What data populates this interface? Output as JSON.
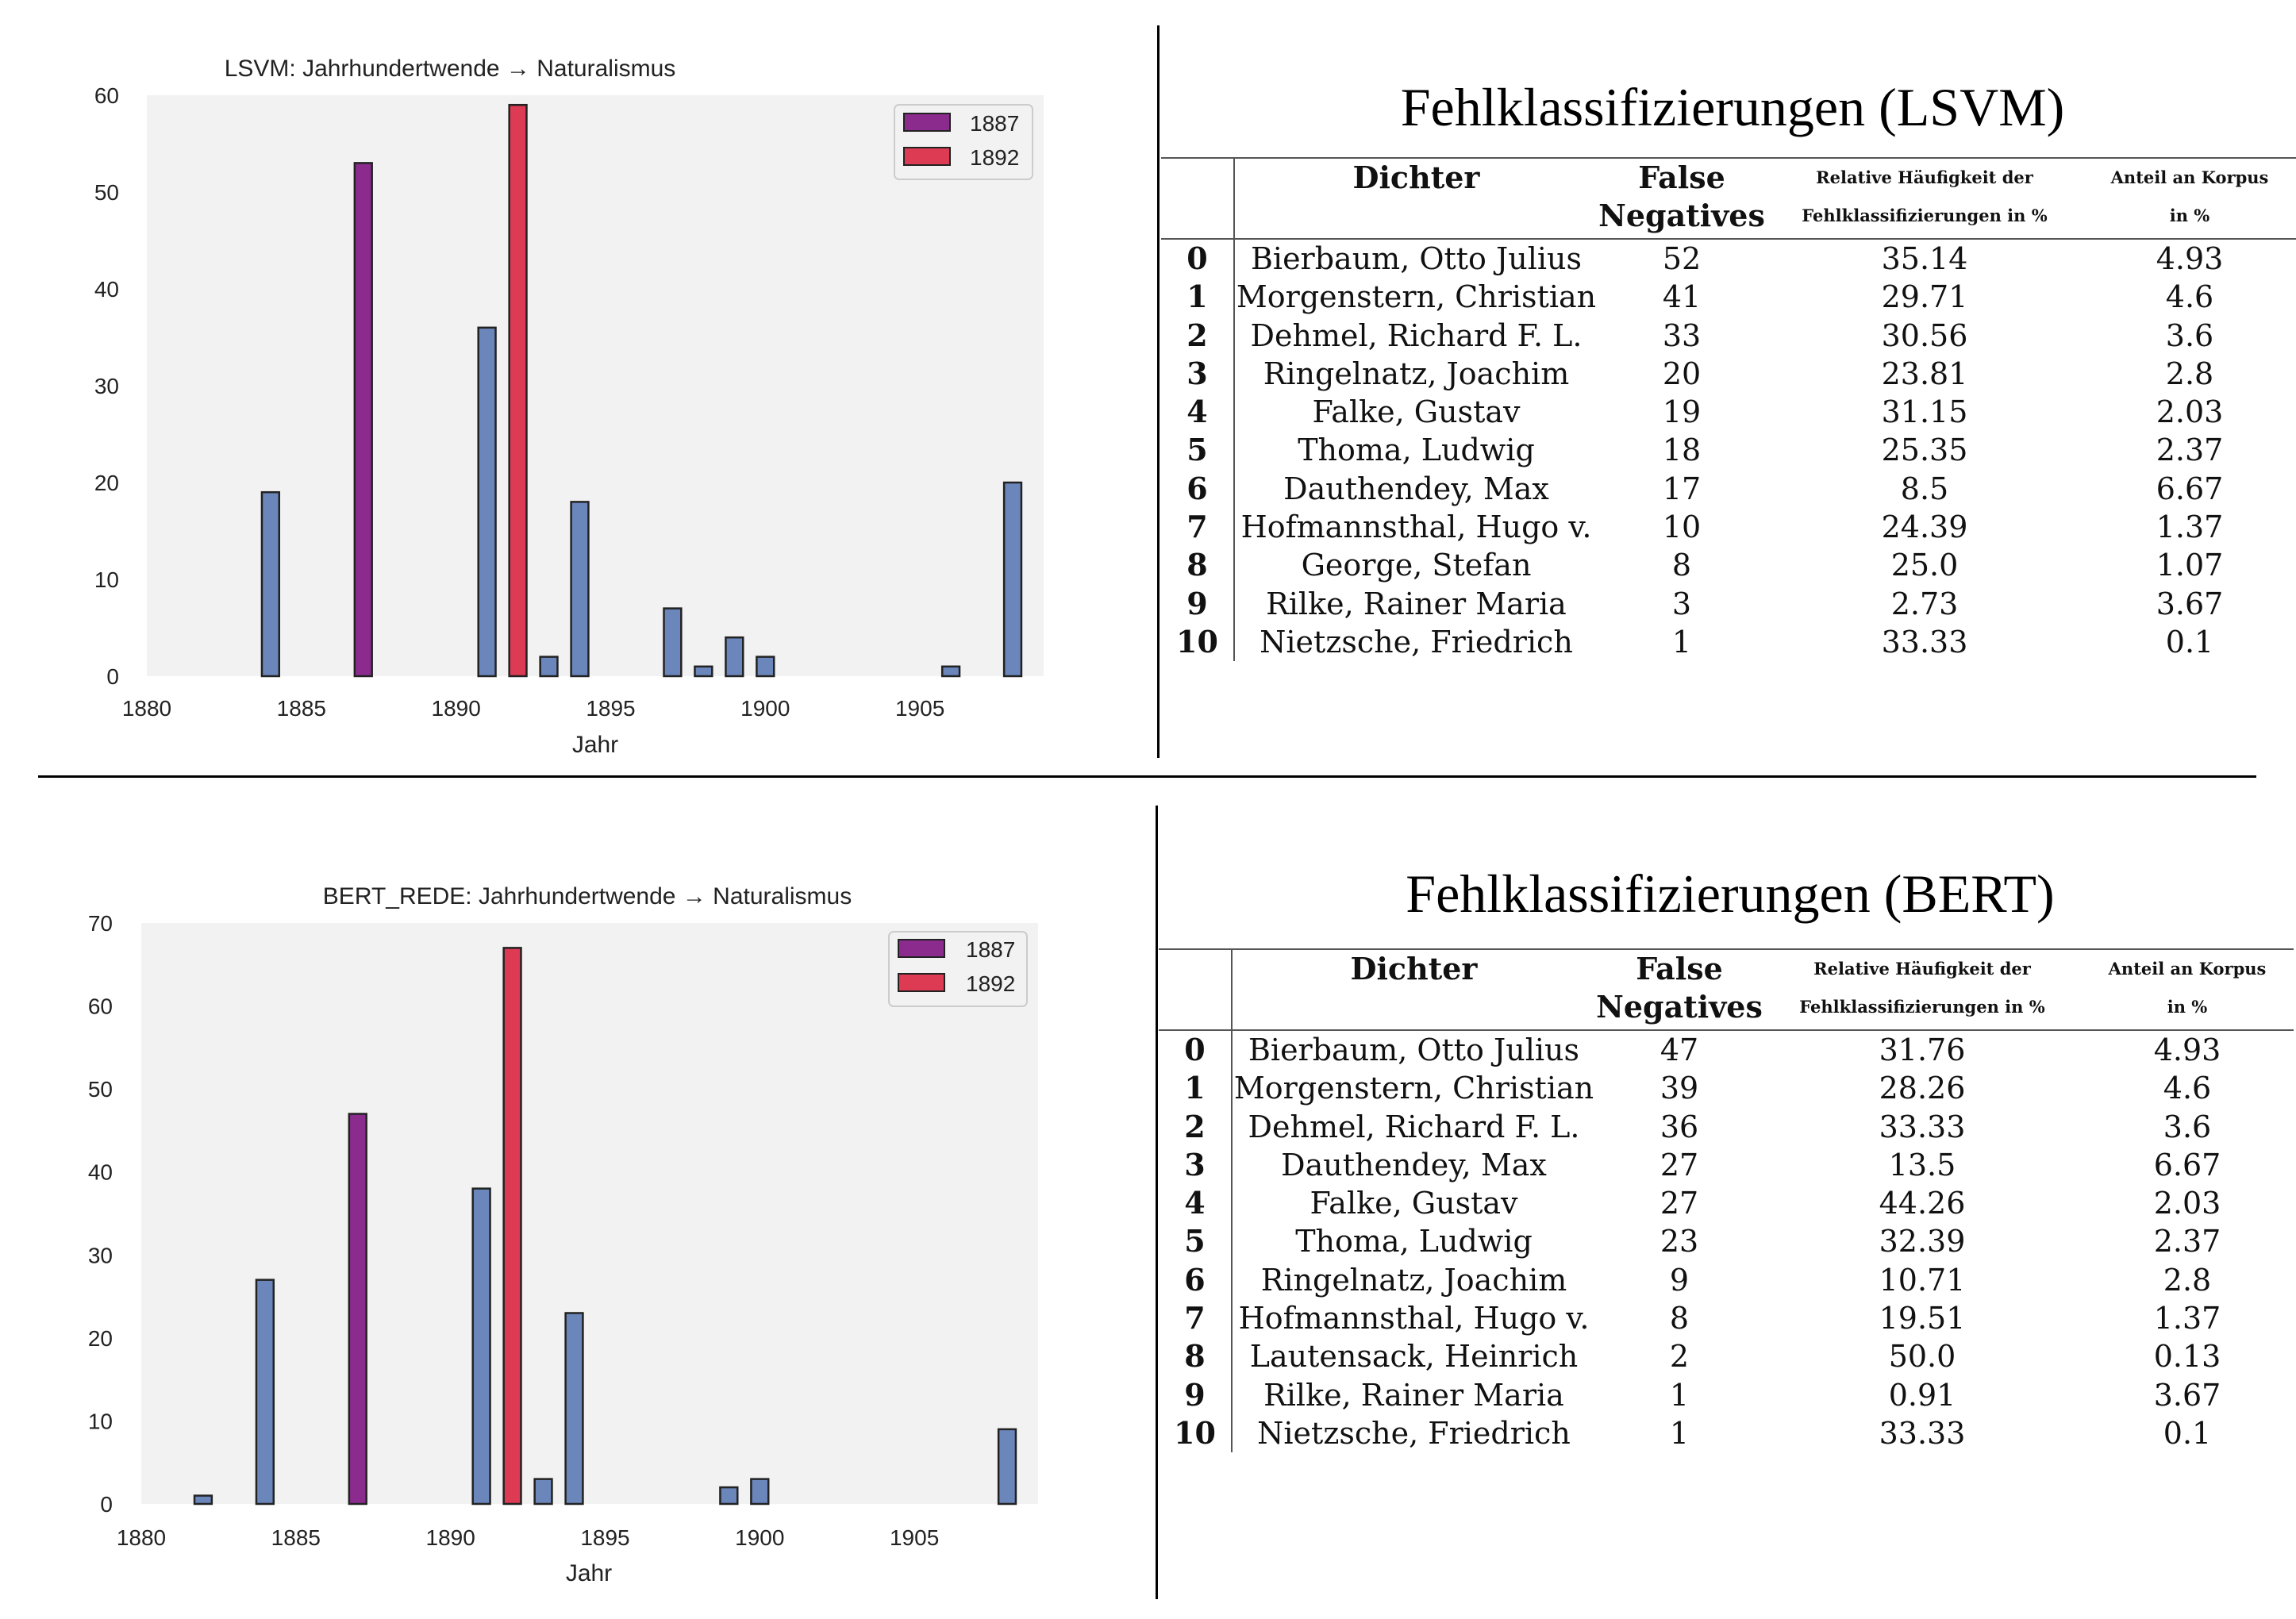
{
  "charts": [
    {
      "title": "LSVM: Jahrhundertwende → Naturalismus",
      "xlabel": "Jahr",
      "ylim": [
        0,
        60
      ],
      "yticks": [
        0,
        10,
        20,
        30,
        40,
        50,
        60
      ],
      "xlim": [
        1880,
        1909
      ],
      "xticks": [
        1880,
        1885,
        1890,
        1895,
        1900,
        1905
      ],
      "legend": [
        {
          "name": "1887",
          "color": "#8b2b8e"
        },
        {
          "name": "1892",
          "color": "#dd3b53"
        }
      ]
    },
    {
      "title": "BERT_REDE: Jahrhundertwende → Naturalismus",
      "xlabel": "Jahr",
      "ylim": [
        0,
        70
      ],
      "yticks": [
        0,
        10,
        20,
        30,
        40,
        50,
        60,
        70
      ],
      "xlim": [
        1880,
        1909
      ],
      "xticks": [
        1880,
        1885,
        1890,
        1895,
        1900,
        1905
      ],
      "legend": [
        {
          "name": "1887",
          "color": "#8b2b8e"
        },
        {
          "name": "1892",
          "color": "#dd3b53"
        }
      ]
    }
  ],
  "chart_data": [
    {
      "type": "bar",
      "title": "LSVM: Jahrhundertwende → Naturalismus",
      "xlabel": "Jahr",
      "ylabel": "",
      "ylim": [
        0,
        60
      ],
      "xlim": [
        1880,
        1909
      ],
      "grid": false,
      "legend_position": "top-right",
      "colors": {
        "default": "#6a86bb",
        "1887": "#8b2b8e",
        "1892": "#dd3b53"
      },
      "bars": [
        {
          "x": 1884,
          "value": 19,
          "series": "default"
        },
        {
          "x": 1887,
          "value": 53,
          "series": "1887"
        },
        {
          "x": 1891,
          "value": 36,
          "series": "default"
        },
        {
          "x": 1892,
          "value": 59,
          "series": "1892"
        },
        {
          "x": 1893,
          "value": 2,
          "series": "default"
        },
        {
          "x": 1894,
          "value": 18,
          "series": "default"
        },
        {
          "x": 1897,
          "value": 7,
          "series": "default"
        },
        {
          "x": 1898,
          "value": 1,
          "series": "default"
        },
        {
          "x": 1899,
          "value": 4,
          "series": "default"
        },
        {
          "x": 1900,
          "value": 2,
          "series": "default"
        },
        {
          "x": 1906,
          "value": 1,
          "series": "default"
        },
        {
          "x": 1908,
          "value": 20,
          "series": "default"
        }
      ]
    },
    {
      "type": "bar",
      "title": "BERT_REDE: Jahrhundertwende → Naturalismus",
      "xlabel": "Jahr",
      "ylabel": "",
      "ylim": [
        0,
        70
      ],
      "xlim": [
        1880,
        1909
      ],
      "grid": false,
      "legend_position": "top-right",
      "colors": {
        "default": "#6a86bb",
        "1887": "#8b2b8e",
        "1892": "#dd3b53"
      },
      "bars": [
        {
          "x": 1882,
          "value": 1,
          "series": "default"
        },
        {
          "x": 1884,
          "value": 27,
          "series": "default"
        },
        {
          "x": 1887,
          "value": 47,
          "series": "1887"
        },
        {
          "x": 1891,
          "value": 38,
          "series": "default"
        },
        {
          "x": 1892,
          "value": 67,
          "series": "1892"
        },
        {
          "x": 1893,
          "value": 3,
          "series": "default"
        },
        {
          "x": 1894,
          "value": 23,
          "series": "default"
        },
        {
          "x": 1899,
          "value": 2,
          "series": "default"
        },
        {
          "x": 1900,
          "value": 3,
          "series": "default"
        },
        {
          "x": 1908,
          "value": 9,
          "series": "default"
        }
      ]
    }
  ],
  "tables": [
    {
      "title": "Fehlklassifizierungen (LSVM)",
      "headers": {
        "dichter": "Dichter",
        "fn_1": "False",
        "fn_2": "Negatives",
        "rel_1": "Relative Häufigkeit der",
        "rel_2": "Fehlklassifizierungen in %",
        "ant_1": "Anteil an Korpus",
        "ant_2": "in %"
      },
      "rows": [
        {
          "idx": "0",
          "name": "Bierbaum, Otto Julius",
          "fn": "52",
          "rel": "35.14",
          "ant": "4.93"
        },
        {
          "idx": "1",
          "name": "Morgenstern, Christian",
          "fn": "41",
          "rel": "29.71",
          "ant": "4.6"
        },
        {
          "idx": "2",
          "name": "Dehmel, Richard F. L.",
          "fn": "33",
          "rel": "30.56",
          "ant": "3.6"
        },
        {
          "idx": "3",
          "name": "Ringelnatz, Joachim",
          "fn": "20",
          "rel": "23.81",
          "ant": "2.8"
        },
        {
          "idx": "4",
          "name": "Falke, Gustav",
          "fn": "19",
          "rel": "31.15",
          "ant": "2.03"
        },
        {
          "idx": "5",
          "name": "Thoma, Ludwig",
          "fn": "18",
          "rel": "25.35",
          "ant": "2.37"
        },
        {
          "idx": "6",
          "name": "Dauthendey, Max",
          "fn": "17",
          "rel": "8.5",
          "ant": "6.67"
        },
        {
          "idx": "7",
          "name": "Hofmannsthal, Hugo v.",
          "fn": "10",
          "rel": "24.39",
          "ant": "1.37"
        },
        {
          "idx": "8",
          "name": "George, Stefan",
          "fn": "8",
          "rel": "25.0",
          "ant": "1.07"
        },
        {
          "idx": "9",
          "name": "Rilke, Rainer Maria",
          "fn": "3",
          "rel": "2.73",
          "ant": "3.67"
        },
        {
          "idx": "10",
          "name": "Nietzsche, Friedrich",
          "fn": "1",
          "rel": "33.33",
          "ant": "0.1"
        }
      ]
    },
    {
      "title": "Fehlklassifizierungen (BERT)",
      "headers": {
        "dichter": "Dichter",
        "fn_1": "False",
        "fn_2": "Negatives",
        "rel_1": "Relative Häufigkeit der",
        "rel_2": "Fehlklassifizierungen in %",
        "ant_1": "Anteil an Korpus",
        "ant_2": "in %"
      },
      "rows": [
        {
          "idx": "0",
          "name": "Bierbaum, Otto Julius",
          "fn": "47",
          "rel": "31.76",
          "ant": "4.93"
        },
        {
          "idx": "1",
          "name": "Morgenstern, Christian",
          "fn": "39",
          "rel": "28.26",
          "ant": "4.6"
        },
        {
          "idx": "2",
          "name": "Dehmel, Richard F. L.",
          "fn": "36",
          "rel": "33.33",
          "ant": "3.6"
        },
        {
          "idx": "3",
          "name": "Dauthendey, Max",
          "fn": "27",
          "rel": "13.5",
          "ant": "6.67"
        },
        {
          "idx": "4",
          "name": "Falke, Gustav",
          "fn": "27",
          "rel": "44.26",
          "ant": "2.03"
        },
        {
          "idx": "5",
          "name": "Thoma, Ludwig",
          "fn": "23",
          "rel": "32.39",
          "ant": "2.37"
        },
        {
          "idx": "6",
          "name": "Ringelnatz, Joachim",
          "fn": "9",
          "rel": "10.71",
          "ant": "2.8"
        },
        {
          "idx": "7",
          "name": "Hofmannsthal, Hugo v.",
          "fn": "8",
          "rel": "19.51",
          "ant": "1.37"
        },
        {
          "idx": "8",
          "name": "Lautensack, Heinrich",
          "fn": "2",
          "rel": "50.0",
          "ant": "0.13"
        },
        {
          "idx": "9",
          "name": "Rilke, Rainer Maria",
          "fn": "1",
          "rel": "0.91",
          "ant": "3.67"
        },
        {
          "idx": "10",
          "name": "Nietzsche, Friedrich",
          "fn": "1",
          "rel": "33.33",
          "ant": "0.1"
        }
      ]
    }
  ]
}
